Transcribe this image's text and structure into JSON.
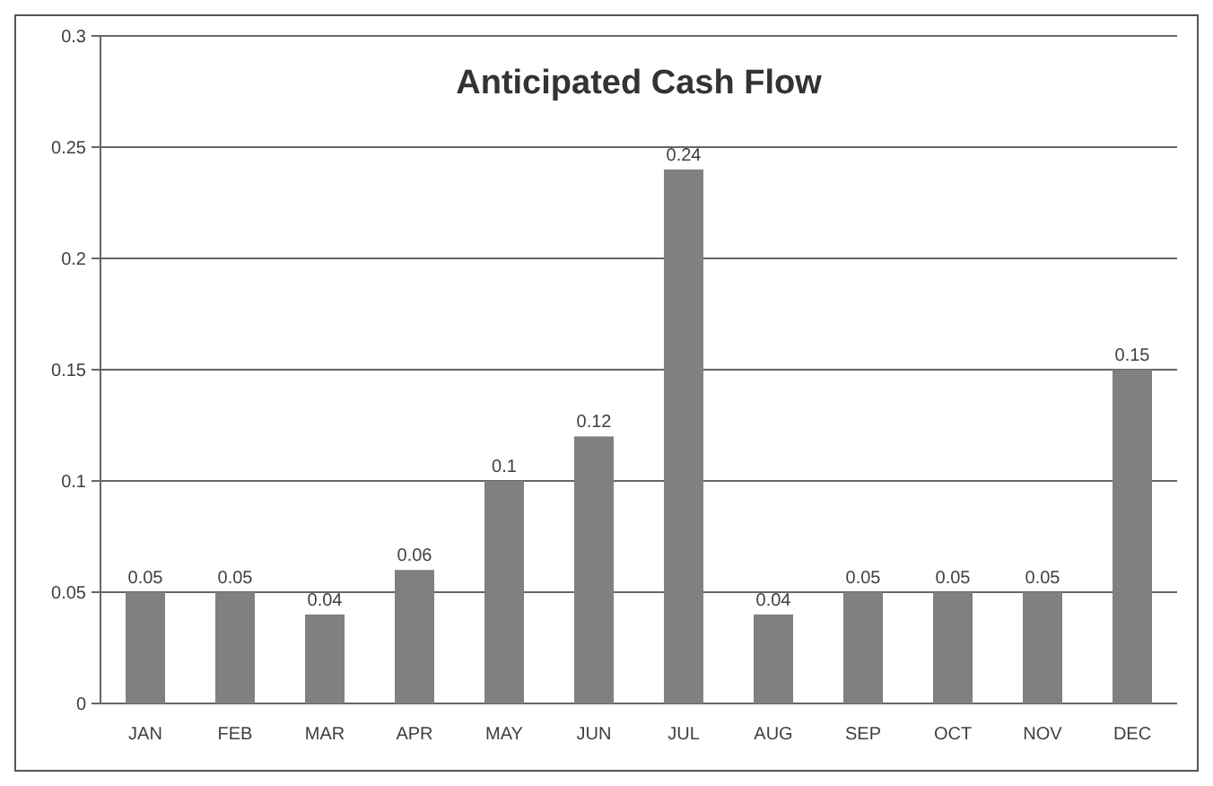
{
  "chart_data": {
    "type": "bar",
    "title": "Anticipated Cash Flow",
    "categories": [
      "JAN",
      "FEB",
      "MAR",
      "APR",
      "MAY",
      "JUN",
      "JUL",
      "AUG",
      "SEP",
      "OCT",
      "NOV",
      "DEC"
    ],
    "values": [
      0.05,
      0.05,
      0.04,
      0.06,
      0.1,
      0.12,
      0.24,
      0.04,
      0.05,
      0.05,
      0.05,
      0.15
    ],
    "color": "#808080",
    "ylim": [
      0,
      0.3
    ],
    "yticks": [
      0,
      0.05,
      0.1,
      0.15,
      0.2,
      0.25,
      0.3
    ],
    "grid": "y",
    "data_labels": true
  }
}
